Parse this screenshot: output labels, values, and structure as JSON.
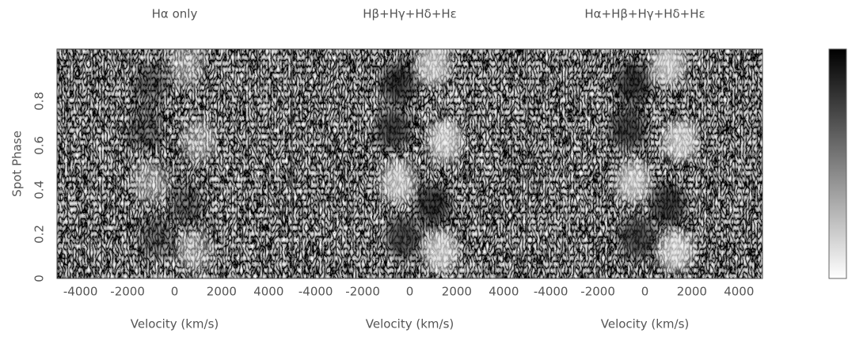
{
  "chart_data": [
    {
      "type": "heatmap",
      "title": "Hα only",
      "xlabel": "Velocity (km/s)",
      "ylabel": "Spot Phase",
      "xlim": [
        -5000,
        5000
      ],
      "ylim": [
        0,
        1.035
      ],
      "xticks": [
        -4000,
        -2000,
        0,
        2000,
        4000
      ],
      "yticks": [
        0,
        0.2,
        0.4,
        0.6,
        0.8
      ]
    },
    {
      "type": "heatmap",
      "title": "Hβ+Hγ+Hδ+Hε",
      "xlabel": "Velocity (km/s)",
      "xlim": [
        -5000,
        5000
      ],
      "ylim": [
        0,
        1.035
      ],
      "xticks": [
        -4000,
        -2000,
        0,
        2000,
        4000
      ]
    },
    {
      "type": "heatmap",
      "title": "Hα+Hβ+Hγ+Hδ+Hε",
      "xlabel": "Velocity (km/s)",
      "xlim": [
        -5000,
        5000
      ],
      "ylim": [
        0,
        1.035
      ],
      "xticks": [
        -4000,
        -2000,
        0,
        2000,
        4000
      ]
    }
  ]
}
